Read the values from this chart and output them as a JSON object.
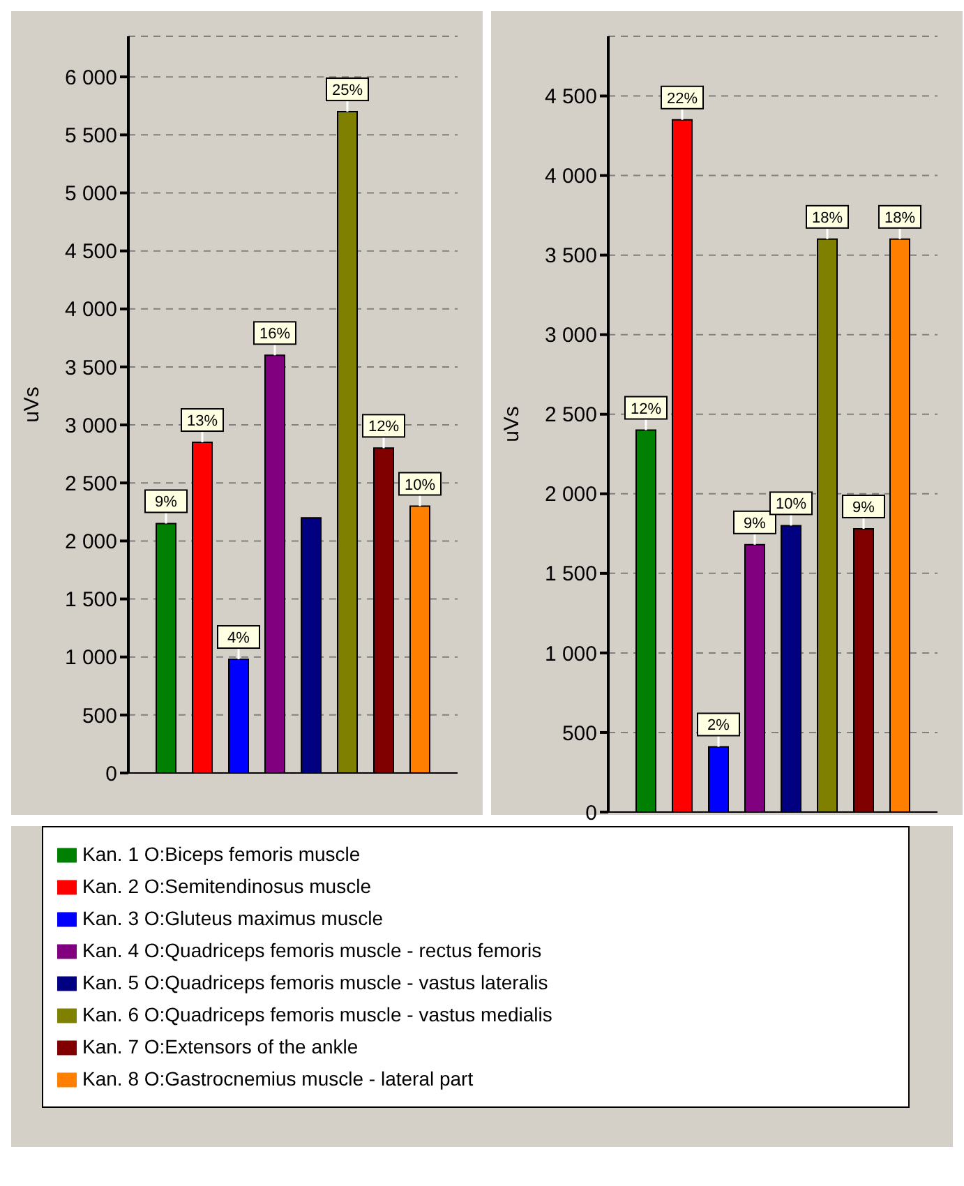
{
  "chart_data": [
    {
      "type": "bar",
      "ylabel": "uVs",
      "categories": [
        null
      ],
      "ylim": [
        0,
        6350
      ],
      "yticks": [
        0,
        {
          "value": 500,
          "label": "500"
        },
        {
          "value": 1000,
          "label": "1 000"
        },
        {
          "value": 1500,
          "label": "1 500"
        },
        {
          "value": 2000,
          "label": "2 000"
        },
        {
          "value": 2500,
          "label": "2 500"
        },
        {
          "value": 3000,
          "label": "3 000"
        },
        {
          "value": 3500,
          "label": "3 500"
        },
        {
          "value": 4000,
          "label": "4 000"
        },
        {
          "value": 4500,
          "label": "4 500"
        },
        {
          "value": 5000,
          "label": "5 000"
        },
        {
          "value": 5500,
          "label": "5 500"
        },
        {
          "value": 6000,
          "label": "6 000"
        }
      ],
      "grid": "y",
      "series": [
        {
          "color": "#008000",
          "values": [
            2150
          ]
        },
        {
          "color": "#ff0000",
          "values": [
            2850
          ]
        },
        {
          "color": "#0000ff",
          "values": [
            980
          ]
        },
        {
          "color": "#800080",
          "values": [
            3600
          ]
        },
        {
          "color": "#000080",
          "values": [
            2200
          ]
        },
        {
          "color": "#808000",
          "values": [
            5700
          ]
        },
        {
          "color": "#800000",
          "values": [
            2800
          ]
        },
        {
          "color": "#ff8000",
          "values": [
            2300
          ]
        }
      ],
      "annotations": [
        {
          "text": "9%",
          "y": 2150
        },
        {
          "text": "13%",
          "y": 2850
        },
        {
          "text": "4%",
          "y": 980
        },
        {
          "text": "16%",
          "y": 3600
        },
        {
          "text": "25%",
          "y": 5700
        },
        {
          "text": "12%",
          "y": 2800
        },
        {
          "text": "10%",
          "y": 2300
        }
      ]
    },
    {
      "type": "bar",
      "ylabel": "uVs",
      "categories": [
        null
      ],
      "ylim": [
        0,
        4875
      ],
      "yticks": [
        0,
        {
          "value": 500,
          "label": "500"
        },
        {
          "value": 1000,
          "label": "1 000"
        },
        {
          "value": 1500,
          "label": "1 500"
        },
        {
          "value": 2000,
          "label": "2 000"
        },
        {
          "value": 2500,
          "label": "2 500"
        },
        {
          "value": 3000,
          "label": "3 000"
        },
        {
          "value": 3500,
          "label": "3 500"
        },
        {
          "value": 4000,
          "label": "4 000"
        },
        {
          "value": 4500,
          "label": "4 500"
        }
      ],
      "grid": "y",
      "legend": "bottom",
      "series": [
        {
          "name": "Kan. 1 O:Biceps femoris muscle",
          "color": "#008000",
          "values": [
            2400
          ]
        },
        {
          "name": "Kan. 2 O:Semitendinosus muscle",
          "color": "#ff0000",
          "values": [
            4350
          ]
        },
        {
          "name": "Kan. 3 O:Gluteus maximus muscle",
          "color": "#0000ff",
          "values": [
            410
          ]
        },
        {
          "name": "Kan. 4 O:Quadriceps femoris muscle - rectus femoris",
          "color": "#800080",
          "values": [
            1680
          ]
        },
        {
          "name": "Kan. 5 O:Quadriceps femoris muscle - vastus lateralis",
          "color": "#000080",
          "values": [
            1800
          ]
        },
        {
          "name": "Kan. 6 O:Quadriceps femoris muscle - vastus medialis",
          "color": "#808000",
          "values": [
            3600
          ]
        },
        {
          "name": "Kan. 7 O:Extensors of the ankle",
          "color": "#800000",
          "values": [
            1780
          ]
        },
        {
          "name": "Kan. 8 O:Gastrocnemius muscle - lateral part",
          "color": "#ff8000",
          "values": [
            3600
          ]
        }
      ],
      "annotations": [
        {
          "text": "12%",
          "y": 2400
        },
        {
          "text": "22%",
          "y": 4350
        },
        {
          "text": "2%",
          "y": 410
        },
        {
          "text": "9%",
          "y": 1680
        },
        {
          "text": "10%",
          "y": 1800
        },
        {
          "text": "18%",
          "y": 3600
        },
        {
          "text": "9%",
          "y": 1780
        },
        {
          "text": "18%",
          "y": 3600
        }
      ]
    }
  ]
}
